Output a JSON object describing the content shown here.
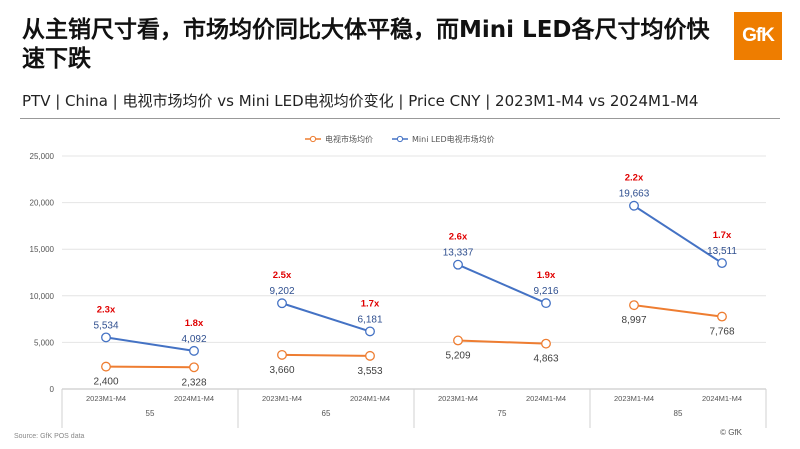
{
  "header": {
    "title": "从主销尺寸看，市场均价同比大体平稳，而Mini LED各尺寸均价快速下跌",
    "subtitle": "PTV | China | 电视市场均价 vs Mini LED电视均价变化 | Price CNY | 2023M1-M4 vs 2024M1-M4",
    "logo_text": "GfK"
  },
  "footer": {
    "source": "Source: GfK POS data",
    "copyright": "© GfK"
  },
  "chart_data": {
    "type": "line",
    "title": "",
    "groups": [
      "55",
      "65",
      "75",
      "85"
    ],
    "periods": [
      "2023M1-M4",
      "2024M1-M4"
    ],
    "ylim": [
      0,
      25000
    ],
    "yticks": [
      "0",
      "5,000",
      "10,000",
      "15,000",
      "20,000",
      "25,000"
    ],
    "ytick_values": [
      0,
      5000,
      10000,
      15000,
      20000,
      25000
    ],
    "legend_position": "top",
    "series": [
      {
        "name": "电视市场均价",
        "color": "#ee7d31",
        "values": [
          [
            2400,
            2328
          ],
          [
            3660,
            3553
          ],
          [
            5209,
            4863
          ],
          [
            8997,
            7768
          ]
        ],
        "labels": [
          [
            "2,400",
            "2,328"
          ],
          [
            "3,660",
            "3,553"
          ],
          [
            "5,209",
            "4,863"
          ],
          [
            "8,997",
            "7,768"
          ]
        ]
      },
      {
        "name": "Mini LED电视市场均价",
        "color": "#4472c4",
        "values": [
          [
            5534,
            4092
          ],
          [
            9202,
            6181
          ],
          [
            13337,
            9216
          ],
          [
            19663,
            13511
          ]
        ],
        "labels": [
          [
            "5,534",
            "4,092"
          ],
          [
            "9,202",
            "6,181"
          ],
          [
            "13,337",
            "9,216"
          ],
          [
            "19,663",
            "13,511"
          ]
        ]
      }
    ],
    "ratio_labels": [
      [
        "2.3x",
        "1.8x"
      ],
      [
        "2.5x",
        "1.7x"
      ],
      [
        "2.6x",
        "1.9x"
      ],
      [
        "2.2x",
        "1.7x"
      ]
    ],
    "ratio_color": "#e00000"
  }
}
